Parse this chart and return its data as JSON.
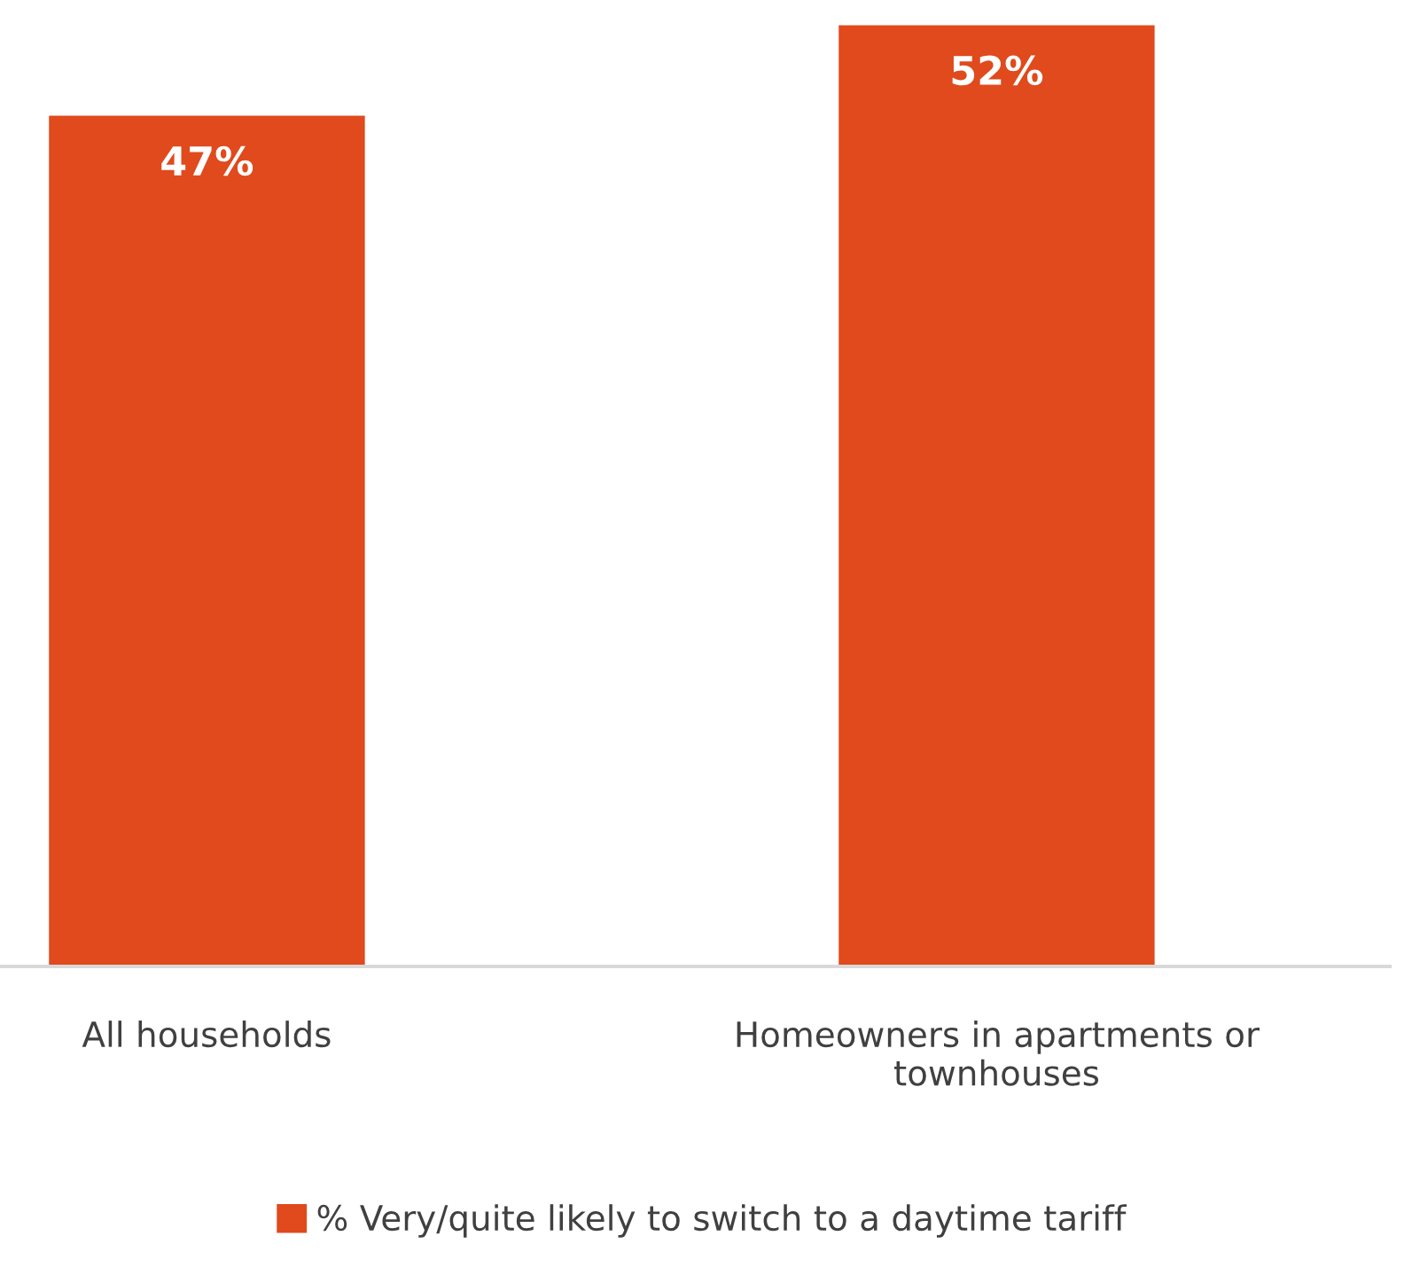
{
  "chart_data": {
    "type": "bar",
    "categories": [
      "All households",
      "Homeowners in apartments or\ntownhouses"
    ],
    "series": [
      {
        "name": "% Very/quite likely to switch to a daytime tariff",
        "color": "#e04a1c",
        "values": [
          47,
          52
        ],
        "value_labels": [
          "47%",
          "52%"
        ]
      }
    ],
    "grid": false,
    "legend": "bottom",
    "tick_labels": "x"
  }
}
